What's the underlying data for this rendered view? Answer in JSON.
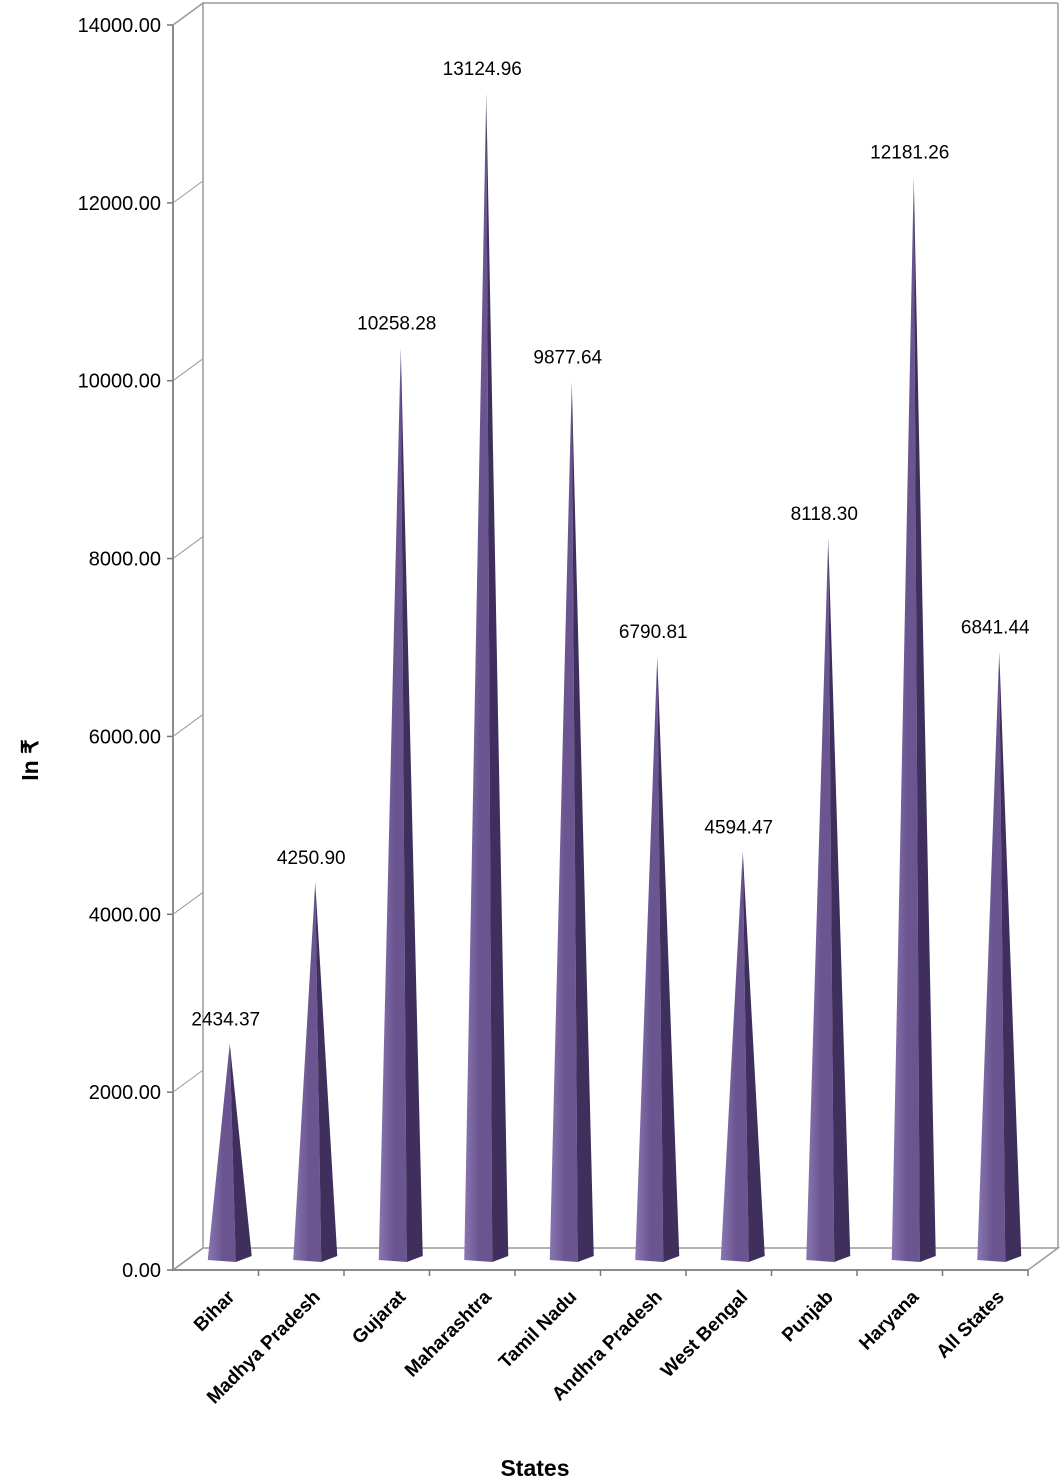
{
  "chart_data": {
    "type": "bar",
    "bar_shape": "3d-cone",
    "categories": [
      "Bihar",
      "Madhya Pradesh",
      "Gujarat",
      "Maharashtra",
      "Tamil Nadu",
      "Andhra Pradesh",
      "West Bengal",
      "Punjab",
      "Haryana",
      "All States"
    ],
    "values": [
      2434.37,
      4250.9,
      10258.28,
      13124.96,
      9877.64,
      6790.81,
      4594.47,
      8118.3,
      12181.26,
      6841.44
    ],
    "value_labels": [
      "2434.37",
      "4250.90",
      "10258.28",
      "13124.96",
      "9877.64",
      "6790.81",
      "4594.47",
      "8118.30",
      "12181.26",
      "6841.44"
    ],
    "y_ticks": [
      "0.00",
      "2000.00",
      "4000.00",
      "6000.00",
      "8000.00",
      "10000.00",
      "12000.00",
      "14000.00"
    ],
    "ylim": [
      0,
      14000
    ],
    "xlabel": "States",
    "ylabel": "In ₹",
    "grid": false,
    "legend": "none",
    "colors": {
      "bar_front": "#6a5590",
      "bar_side": "#3e2f5c",
      "bar_highlight": "#8a76b0",
      "frame": "#9a9a9a"
    }
  }
}
